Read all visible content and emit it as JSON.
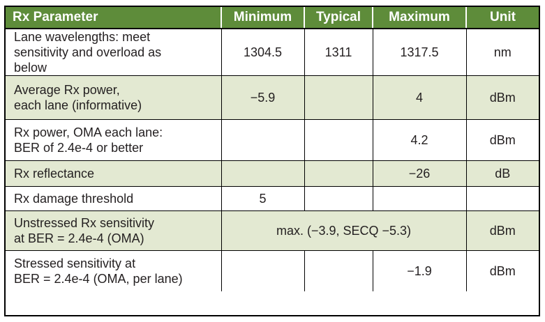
{
  "table": {
    "headers": [
      "Rx Parameter",
      "Minimum",
      "Typical",
      "Maximum",
      "Unit"
    ],
    "header_bg": "#5e8c3a",
    "shade_bg": "#e3e9d2",
    "rows": [
      {
        "parameter": [
          "Lane wavelengths: meet",
          "sensitivity and overload as",
          "below"
        ],
        "minimum": "1304.5",
        "typical": "1311",
        "maximum": "1317.5",
        "unit": "nm"
      },
      {
        "parameter": [
          "Average Rx power,",
          "each lane (informative)"
        ],
        "minimum": "−5.9",
        "typical": "",
        "maximum": "4",
        "unit": "dBm"
      },
      {
        "parameter": [
          "Rx power, OMA each lane:",
          "BER of 2.4e-4 or better"
        ],
        "minimum": "",
        "typical": "",
        "maximum": "4.2",
        "unit": "dBm"
      },
      {
        "parameter": [
          "Rx reflectance"
        ],
        "minimum": "",
        "typical": "",
        "maximum": "−26",
        "unit": "dB"
      },
      {
        "parameter": [
          "Rx damage threshold"
        ],
        "minimum": "5",
        "typical": "",
        "maximum": "",
        "unit": ""
      },
      {
        "parameter": [
          "Unstressed Rx sensitivity",
          "at BER = 2.4e-4 (OMA)"
        ],
        "span_value": "max. (−3.9, SECQ −5.3)",
        "unit": "dBm"
      },
      {
        "parameter": [
          "Stressed sensitivity at",
          "BER = 2.4e-4 (OMA, per lane)"
        ],
        "minimum": "",
        "typical": "",
        "maximum": "−1.9",
        "unit": "dBm"
      }
    ]
  }
}
